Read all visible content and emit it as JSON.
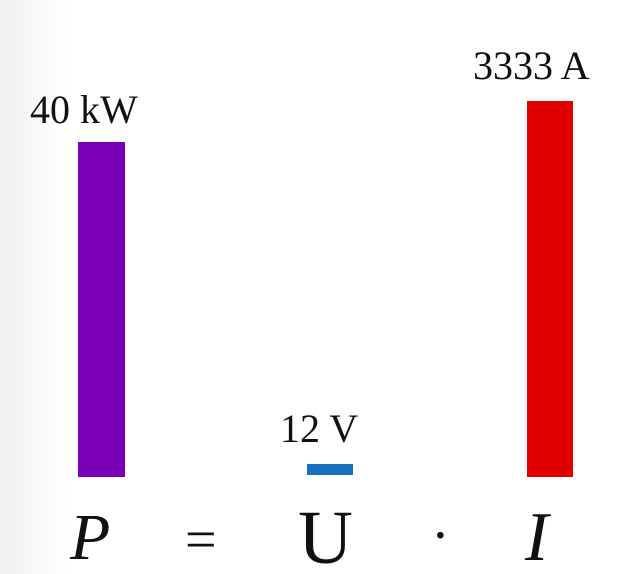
{
  "power": {
    "label": "40 kW",
    "value": 40,
    "unit": "kW",
    "color": "#7a00b8"
  },
  "voltage": {
    "label": "12 V",
    "value": 12,
    "unit": "V",
    "color": "#1a70c0"
  },
  "current": {
    "label": "3333 A",
    "value": 3333,
    "unit": "A",
    "color": "#e10000"
  },
  "formula": {
    "p": "P",
    "equals": "=",
    "u": "U",
    "dot": "·",
    "i": "I"
  }
}
